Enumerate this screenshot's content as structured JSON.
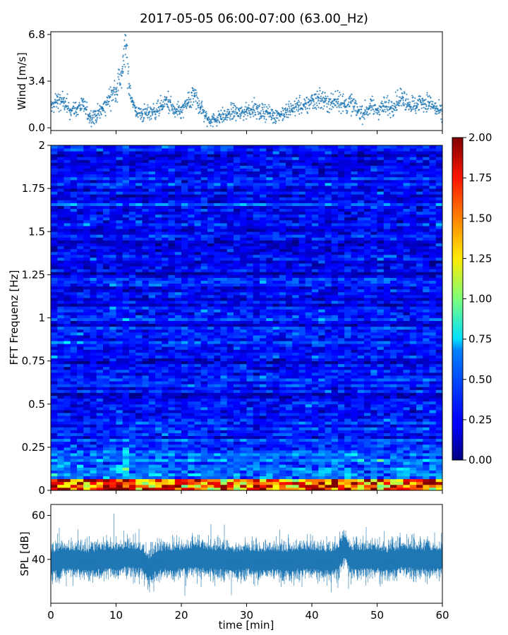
{
  "figure": {
    "title": "2017-05-05 06:00-07:00 (63.00_Hz)"
  },
  "chart_data": [
    {
      "type": "scatter",
      "name": "wind",
      "ylabel": "Wind [m/s]",
      "ylim": [
        -0.2,
        7.0
      ],
      "yticks": [
        "0.0",
        "3.4",
        "6.8"
      ],
      "ytick_values": [
        0.0,
        3.4,
        6.8
      ],
      "xlim": [
        0,
        60
      ],
      "color": "#1f77b4",
      "marker": "+",
      "x": [
        0,
        1,
        2,
        3,
        4,
        5,
        6,
        7,
        8,
        9,
        10,
        11,
        11.5,
        12,
        12.5,
        13,
        14,
        15,
        16,
        17,
        18,
        19,
        20,
        21,
        22,
        23,
        24,
        25,
        26,
        27,
        28,
        29,
        30,
        31,
        32,
        33,
        34,
        35,
        36,
        37,
        38,
        39,
        40,
        41,
        42,
        43,
        44,
        45,
        46,
        47,
        48,
        49,
        50,
        51,
        52,
        53,
        54,
        55,
        56,
        57,
        58,
        59,
        60
      ],
      "values": [
        1.5,
        2.0,
        1.8,
        1.3,
        1.4,
        1.6,
        0.8,
        0.9,
        1.4,
        2.2,
        2.8,
        4.0,
        6.0,
        3.2,
        2.0,
        1.2,
        1.0,
        1.1,
        1.2,
        1.6,
        1.9,
        1.1,
        1.2,
        1.8,
        2.3,
        1.5,
        0.6,
        0.6,
        0.8,
        0.9,
        1.2,
        1.0,
        1.3,
        1.5,
        1.1,
        1.2,
        0.9,
        1.0,
        1.1,
        1.4,
        1.6,
        1.5,
        2.0,
        2.2,
        1.9,
        1.8,
        2.1,
        1.7,
        1.8,
        1.2,
        1.1,
        1.6,
        1.3,
        1.6,
        1.5,
        1.9,
        2.2,
        1.7,
        1.6,
        2.0,
        1.8,
        1.4,
        1.0
      ]
    },
    {
      "type": "heatmap",
      "name": "spectrogram",
      "ylabel": "FFT Frequenz [Hz]",
      "ylim": [
        0,
        2
      ],
      "yticks": [
        "0",
        "0.25",
        "0.5",
        "0.75",
        "1",
        "1.25",
        "1.5",
        "1.75",
        "2"
      ],
      "ytick_values": [
        0,
        0.25,
        0.5,
        0.75,
        1,
        1.25,
        1.5,
        1.75,
        2
      ],
      "xlim": [
        0,
        60
      ],
      "colormap": "jet",
      "clim": [
        0.0,
        2.0
      ],
      "colorbar_ticks": [
        "0.00",
        "0.25",
        "0.50",
        "0.75",
        "1.00",
        "1.25",
        "1.50",
        "1.75",
        "2.00"
      ],
      "colorbar_tick_values": [
        0.0,
        0.25,
        0.5,
        0.75,
        1.0,
        1.25,
        1.5,
        1.75,
        2.0
      ],
      "time_bins": 60,
      "freq_bins": 120,
      "typical_level": 0.25
    },
    {
      "type": "line",
      "name": "spl",
      "ylabel": "SPL [dB]",
      "xlabel": "time [min]",
      "ylim": [
        20,
        65
      ],
      "yticks": [
        "40",
        "60"
      ],
      "ytick_values": [
        40,
        60
      ],
      "xlim": [
        0,
        60
      ],
      "xticks": [
        "0",
        "10",
        "20",
        "30",
        "40",
        "50",
        "60"
      ],
      "xtick_values": [
        0,
        10,
        20,
        30,
        40,
        50,
        60
      ],
      "color": "#1f77b4",
      "x": [
        0,
        2,
        4,
        6,
        8,
        10,
        12,
        14,
        15,
        16,
        18,
        20,
        22,
        24,
        26,
        28,
        30,
        32,
        34,
        36,
        38,
        40,
        42,
        44,
        45,
        46,
        48,
        50,
        52,
        54,
        56,
        58,
        60
      ],
      "values": [
        39,
        40,
        40,
        39,
        40,
        40,
        41,
        40,
        36,
        39,
        40,
        40,
        41,
        40,
        40,
        39,
        40,
        39,
        40,
        39,
        40,
        40,
        39,
        40,
        46,
        40,
        40,
        40,
        39,
        41,
        40,
        40,
        40
      ]
    }
  ]
}
